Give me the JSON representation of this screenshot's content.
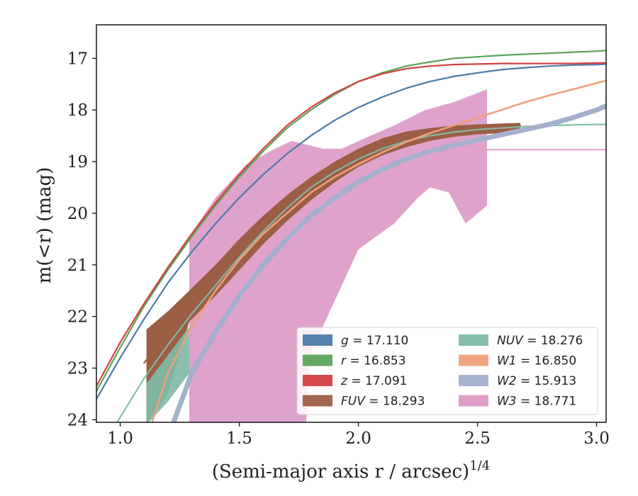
{
  "chart_data": {
    "type": "line",
    "xlabel": "(Semi-major axis r / arcsec)",
    "xlabel_superscript": "1/4",
    "ylabel": "m(<r) (mag)",
    "xlim": [
      0.9,
      3.04
    ],
    "ylim": [
      24.05,
      16.35
    ],
    "y_inverted": true,
    "x_ticks": [
      "1.0",
      "1.5",
      "2.0",
      "2.5",
      "3.0"
    ],
    "y_ticks": [
      "17",
      "18",
      "19",
      "20",
      "21",
      "22",
      "23",
      "24"
    ],
    "grid": false,
    "legend": {
      "placement": "lower-right",
      "columns": 2
    },
    "series": [
      {
        "name": "g = 17.110",
        "label_var": "g",
        "label_val": "= 17.110",
        "italic": false,
        "color": "#4c7aa6",
        "opacity": 1,
        "width": 2.2,
        "x": [
          0.9,
          1.0,
          1.1,
          1.2,
          1.3,
          1.4,
          1.5,
          1.6,
          1.7,
          1.8,
          1.9,
          2.0,
          2.1,
          2.2,
          2.3,
          2.4,
          2.5,
          2.6,
          2.7,
          2.8,
          2.9,
          3.0,
          3.04
        ],
        "y": [
          23.6,
          22.8,
          22.05,
          21.35,
          20.75,
          20.2,
          19.7,
          19.25,
          18.85,
          18.5,
          18.2,
          17.95,
          17.75,
          17.58,
          17.45,
          17.35,
          17.28,
          17.22,
          17.18,
          17.15,
          17.13,
          17.12,
          17.11
        ]
      },
      {
        "name": "r = 16.853",
        "label_var": "r",
        "label_val": "= 16.853",
        "italic": false,
        "color": "#5aa45a",
        "opacity": 1,
        "width": 2.2,
        "x": [
          0.9,
          1.0,
          1.1,
          1.2,
          1.3,
          1.4,
          1.5,
          1.6,
          1.7,
          1.8,
          1.9,
          2.0,
          2.1,
          2.2,
          2.3,
          2.4,
          2.5,
          2.6,
          2.7,
          2.8,
          2.9,
          3.0,
          3.04
        ],
        "y": [
          23.45,
          22.6,
          21.8,
          21.1,
          20.45,
          19.85,
          19.3,
          18.8,
          18.35,
          18.0,
          17.7,
          17.45,
          17.28,
          17.15,
          17.07,
          17.0,
          16.97,
          16.94,
          16.92,
          16.9,
          16.88,
          16.86,
          16.85
        ]
      },
      {
        "name": "z = 17.091",
        "label_var": "z",
        "label_val": "= 17.091",
        "italic": false,
        "color": "#d44040",
        "opacity": 1,
        "width": 2.2,
        "x": [
          0.9,
          1.0,
          1.1,
          1.2,
          1.3,
          1.4,
          1.5,
          1.6,
          1.7,
          1.8,
          1.9,
          2.0,
          2.1,
          2.2,
          2.3,
          2.4,
          2.5,
          2.6,
          2.7,
          2.8,
          2.9,
          3.0,
          3.04
        ],
        "y": [
          23.35,
          22.5,
          21.75,
          21.05,
          20.4,
          19.8,
          19.25,
          18.75,
          18.3,
          17.95,
          17.67,
          17.45,
          17.3,
          17.2,
          17.15,
          17.12,
          17.11,
          17.1,
          17.1,
          17.1,
          17.1,
          17.09,
          17.09
        ]
      },
      {
        "name": "FUV = 18.293",
        "label_var": "FUV",
        "label_val": "= 18.293",
        "italic": true,
        "color": "#9c5e44",
        "opacity": 1,
        "width": 2.2,
        "x": [
          1.1,
          1.2,
          1.3,
          1.4,
          1.5,
          1.6,
          1.7,
          1.8,
          1.9,
          2.0,
          2.1,
          2.2,
          2.3,
          2.4,
          2.5,
          2.6,
          2.68
        ],
        "y": [
          22.9,
          22.35,
          21.8,
          21.3,
          20.8,
          20.35,
          19.95,
          19.55,
          19.2,
          18.95,
          18.7,
          18.55,
          18.45,
          18.4,
          18.35,
          18.31,
          18.3
        ]
      },
      {
        "name": "NUV = 18.276",
        "label_var": "NUV",
        "label_val": "= 18.276",
        "italic": true,
        "color": "#7fbba7",
        "opacity": 0.95,
        "width": 2.2,
        "x": [
          0.98,
          1.1,
          1.2,
          1.3,
          1.4,
          1.5,
          1.6,
          1.7,
          1.8,
          1.9,
          2.0,
          2.1,
          2.2,
          2.3,
          2.4,
          2.5,
          2.6,
          2.7,
          2.8,
          2.9,
          3.0,
          3.04
        ],
        "y": [
          24.1,
          23.2,
          22.55,
          21.95,
          21.4,
          20.85,
          20.35,
          19.9,
          19.5,
          19.2,
          18.95,
          18.75,
          18.6,
          18.5,
          18.43,
          18.38,
          18.35,
          18.32,
          18.3,
          18.29,
          18.28,
          18.28
        ]
      },
      {
        "name": "W1 = 16.850",
        "label_var": "W1",
        "label_val": "= 16.850",
        "italic": true,
        "color": "#eea07b",
        "opacity": 1,
        "width": 2.6,
        "x": [
          1.13,
          1.2,
          1.3,
          1.4,
          1.5,
          1.6,
          1.7,
          1.8,
          1.9,
          2.0,
          2.1,
          2.2,
          2.3,
          2.4,
          2.5,
          2.6,
          2.7,
          2.8,
          2.9,
          3.0,
          3.04
        ],
        "y": [
          24.1,
          23.1,
          22.2,
          21.5,
          20.9,
          20.4,
          20.0,
          19.6,
          19.3,
          19.05,
          18.82,
          18.62,
          18.45,
          18.3,
          18.15,
          18.0,
          17.85,
          17.72,
          17.6,
          17.48,
          17.43
        ]
      },
      {
        "name": "W2 = 15.913",
        "label_var": "W2",
        "label_val": "= 15.913",
        "italic": true,
        "color": "#a4b0cc",
        "opacity": 1,
        "width": 7,
        "x": [
          1.22,
          1.3,
          1.4,
          1.5,
          1.6,
          1.7,
          1.8,
          1.9,
          2.0,
          2.1,
          2.2,
          2.3,
          2.4,
          2.5,
          2.6,
          2.7,
          2.8,
          2.9,
          3.0,
          3.04
        ],
        "y": [
          24.1,
          23.1,
          22.3,
          21.6,
          21.0,
          20.5,
          20.05,
          19.7,
          19.4,
          19.15,
          18.95,
          18.8,
          18.68,
          18.58,
          18.48,
          18.38,
          18.28,
          18.15,
          18.0,
          17.92
        ]
      },
      {
        "name": "W3 = 18.771",
        "label_var": "W3",
        "label_val": "= 18.771",
        "italic": true,
        "color": "#dc9ac6",
        "opacity": 0.95,
        "width": 2,
        "x": [
          2.54,
          3.04
        ],
        "y": [
          18.77,
          18.77
        ]
      }
    ],
    "bands": [
      {
        "series": "W3",
        "color": "#dc9ac6",
        "opacity": 0.92,
        "upper_x": [
          1.29,
          1.4,
          1.53,
          1.65,
          1.72,
          1.85,
          1.93,
          2.05,
          2.15,
          2.28,
          2.4,
          2.54
        ],
        "upper_y": [
          20.45,
          19.7,
          19.05,
          18.75,
          18.6,
          18.75,
          18.75,
          18.5,
          18.3,
          18.0,
          17.85,
          17.6
        ],
        "lower_x": [
          2.54,
          2.54,
          2.45,
          2.38,
          2.3,
          2.25,
          2.15,
          2.0,
          1.92,
          1.8,
          1.78,
          1.5,
          1.29
        ],
        "lower_y": [
          18.6,
          19.85,
          20.2,
          19.6,
          19.5,
          19.7,
          20.2,
          20.7,
          21.5,
          22.7,
          24.1,
          24.1,
          24.1
        ]
      },
      {
        "series": "FUV",
        "color": "#9c5e44",
        "opacity": 1,
        "upper_x": [
          1.11,
          1.2,
          1.29,
          1.4,
          1.5,
          1.6,
          1.7,
          1.8,
          1.9,
          2.0,
          2.1,
          2.2,
          2.3,
          2.4,
          2.5,
          2.6,
          2.68
        ],
        "upper_y": [
          22.25,
          21.9,
          21.5,
          21.0,
          20.5,
          20.05,
          19.65,
          19.3,
          19.0,
          18.75,
          18.55,
          18.42,
          18.35,
          18.3,
          18.28,
          18.26,
          18.25
        ],
        "lower_x": [
          2.68,
          2.6,
          2.5,
          2.4,
          2.3,
          2.2,
          2.1,
          2.0,
          1.9,
          1.8,
          1.7,
          1.6,
          1.5,
          1.4,
          1.29,
          1.2,
          1.11
        ],
        "lower_y": [
          18.42,
          18.45,
          18.47,
          18.52,
          18.6,
          18.72,
          18.88,
          19.1,
          19.4,
          19.75,
          20.15,
          20.6,
          21.1,
          21.6,
          22.1,
          23.5,
          24.1
        ]
      },
      {
        "series": "NUV",
        "color": "#7fbba7",
        "opacity": 0.92,
        "upper_x": [
          1.11,
          1.2,
          1.29
        ],
        "upper_y": [
          23.3,
          22.75,
          22.2
        ],
        "lower_x": [
          1.29,
          1.2,
          1.11
        ],
        "lower_y": [
          23.1,
          23.65,
          24.1
        ]
      }
    ]
  }
}
